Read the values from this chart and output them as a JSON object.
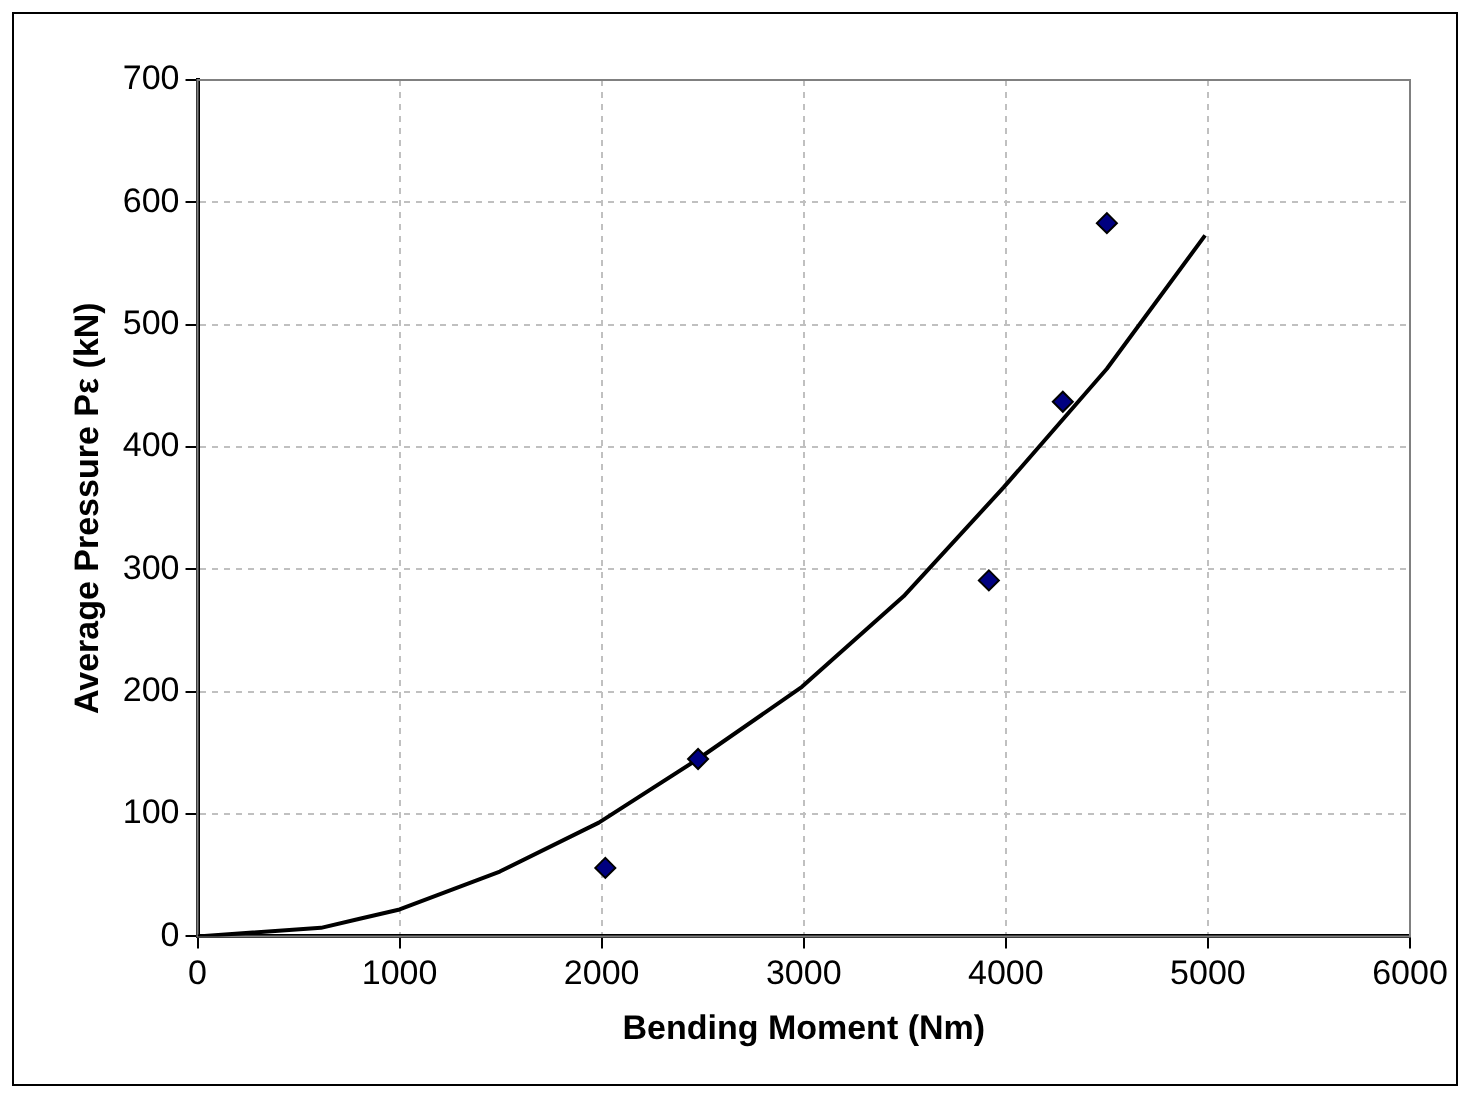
{
  "chart_data": {
    "type": "scatter",
    "xlabel": "Bending Moment (Nm)",
    "ylabel": "Average Pressure Pε (kN)",
    "xlim": [
      0,
      6000
    ],
    "xticks": [
      0,
      1000,
      2000,
      3000,
      4000,
      5000,
      6000
    ],
    "ylim": [
      0,
      700
    ],
    "yticks": [
      0,
      100,
      200,
      300,
      400,
      500,
      600,
      700
    ],
    "grid": true,
    "marker": "diamond",
    "series": [
      {
        "type": "scatter",
        "color": "#000080",
        "x": [
          2018,
          2477,
          3916,
          4282,
          4500
        ],
        "values": [
          56,
          145,
          291,
          437,
          583
        ]
      },
      {
        "type": "line",
        "color": "#000000",
        "marker": "none",
        "x": [
          0,
          611,
          792,
          1000,
          1496,
          1986,
          2477,
          2991,
          3494,
          3989,
          4500,
          4986
        ],
        "values": [
          0,
          7,
          14,
          22,
          53,
          93,
          145,
          204,
          278,
          367,
          464,
          573
        ]
      }
    ]
  }
}
